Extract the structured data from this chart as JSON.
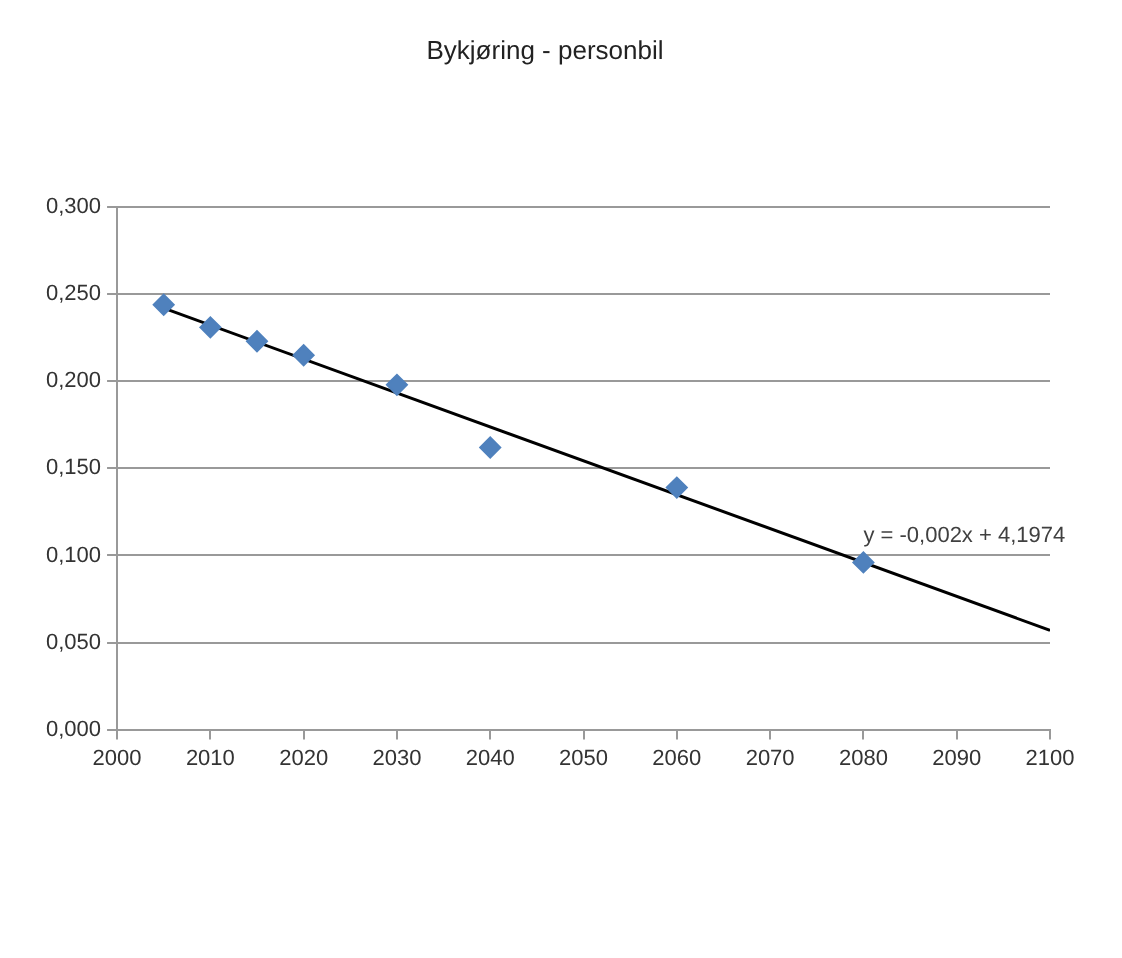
{
  "chart_data": {
    "type": "scatter",
    "title": "Bykjøring - personbil",
    "x": [
      2005,
      2010,
      2015,
      2020,
      2030,
      2040,
      2060,
      2080
    ],
    "series": [
      {
        "color": "#4f81bd",
        "marker": "diamond",
        "values": [
          0.244,
          0.231,
          0.223,
          0.215,
          0.198,
          0.162,
          0.139,
          0.096
        ]
      },
      {
        "type": "line",
        "color": "#000000",
        "marker": "none",
        "line_style": "solid",
        "x": [
          2005,
          2100
        ],
        "values": [
          0.242,
          0.057
        ]
      }
    ],
    "xlim": [
      2000,
      2100
    ],
    "xticks": [
      2000,
      2010,
      2020,
      2030,
      2040,
      2050,
      2060,
      2070,
      2080,
      2090,
      2100
    ],
    "ylim": [
      0,
      0.3
    ],
    "yticks": [
      {
        "value": 0,
        "label": "0,000"
      },
      {
        "value": 0.05,
        "label": "0,050"
      },
      {
        "value": 0.1,
        "label": "0,100"
      },
      {
        "value": 0.15,
        "label": "0,150"
      },
      {
        "value": 0.2,
        "label": "0,200"
      },
      {
        "value": 0.25,
        "label": "0,250"
      },
      {
        "value": 0.3,
        "label": "0,300"
      }
    ],
    "grid": "y",
    "legend": false,
    "annotations": [
      {
        "text": "y = -0,002x + 4,1974",
        "x": 2080,
        "y": 0.105
      }
    ]
  }
}
